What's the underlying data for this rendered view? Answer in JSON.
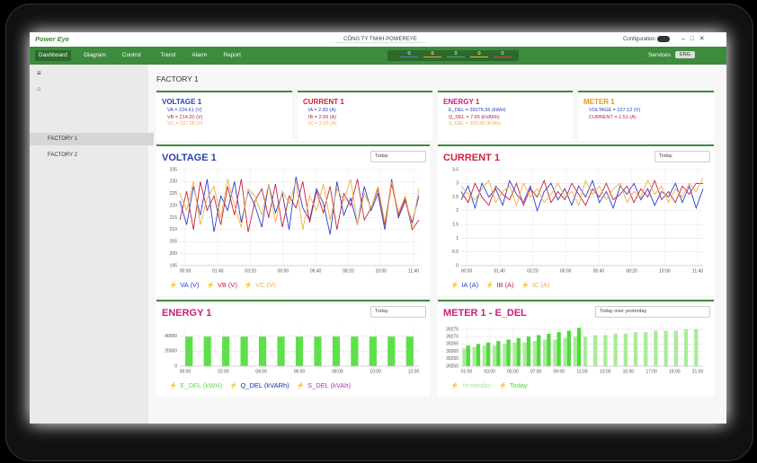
{
  "header": {
    "logo": "Power Eye",
    "company": "CÔNG TY TNHH POWEREYE",
    "configuration": "Configuration"
  },
  "nav": {
    "items": [
      "Dashboard",
      "Diagram",
      "Control",
      "Trend",
      "Alarm",
      "Report"
    ],
    "indicators": [
      "0",
      "0",
      "0",
      "0",
      "0"
    ],
    "indicator_colors": [
      "#4a7fd4",
      "#f0a030",
      "#3cb371",
      "#e8c020",
      "#e04040"
    ],
    "services": "Services",
    "language": "ENG"
  },
  "sidebar": {
    "items": [
      "FACTORY 1",
      "FACTORY 2"
    ]
  },
  "page_title": "FACTORY 1",
  "cards": [
    {
      "title": "VOLTAGE 1",
      "color": "#2a3fb0",
      "lines": [
        "VA = 224.61 (V)",
        "VB = 214.20 (V)",
        "VC = 227.28 (V)"
      ],
      "line_colors": [
        "#2a3fb0",
        "#c8203c",
        "#f0b040"
      ]
    },
    {
      "title": "CURRENT 1",
      "color": "#d0203c",
      "lines": [
        "IA = 2.83 (A)",
        "IB = 2.99 (A)",
        "IC = 3.33 (A)"
      ],
      "line_colors": [
        "#2a3fb0",
        "#c8203c",
        "#f0b040"
      ]
    },
    {
      "title": "ENERGY 1",
      "color": "#c8207a",
      "lines": [
        "E_DEL = 39276.56 (kWH)",
        "Q_DEL = 7.65 (kVARh)",
        "S_DEL = 106.89 (kVAh)"
      ],
      "line_colors": [
        "#2a3fb0",
        "#c8203c",
        "#f0b040"
      ]
    },
    {
      "title": "METER 1",
      "color": "#e09a20",
      "lines": [
        "VOLTAGE = 227.12 (V)",
        "CURRENT = 2.51 (A)"
      ],
      "line_colors": [
        "#2a3fb0",
        "#c8203c"
      ]
    }
  ],
  "charts": [
    {
      "type": "line",
      "title": "VOLTAGE 1",
      "color": "#2a3fb0",
      "range": "Today",
      "ylim": [
        195,
        235
      ],
      "yticks": [
        195,
        200,
        205,
        210,
        215,
        220,
        225,
        230,
        235
      ],
      "x_labels": [
        "00:00",
        "01:40",
        "03:20",
        "05:00",
        "06:40",
        "08:20",
        "10:00",
        "11:40"
      ],
      "series": [
        {
          "name": "VA (V)",
          "color": "#2a3fd0",
          "values": [
            222,
            212,
            228,
            216,
            231,
            209,
            224,
            218,
            230,
            213,
            226,
            220,
            211,
            229,
            217,
            225,
            210,
            232,
            219,
            214,
            227,
            221,
            208,
            230,
            216,
            223,
            212,
            228,
            218,
            225,
            210,
            231,
            215,
            222,
            213,
            224
          ]
        },
        {
          "name": "VB (V)",
          "color": "#c8203c",
          "values": [
            214,
            226,
            210,
            230,
            218,
            224,
            212,
            228,
            216,
            231,
            209,
            222,
            227,
            215,
            229,
            211,
            224,
            219,
            230,
            213,
            226,
            217,
            228,
            210,
            225,
            220,
            231,
            214,
            219,
            227,
            212,
            229,
            216,
            223,
            210,
            214
          ]
        },
        {
          "name": "VC (V)",
          "color": "#f0b040",
          "values": [
            225,
            218,
            230,
            212,
            223,
            228,
            215,
            231,
            220,
            211,
            227,
            224,
            216,
            229,
            213,
            226,
            221,
            230,
            210,
            224,
            218,
            229,
            214,
            227,
            222,
            231,
            212,
            225,
            219,
            228,
            213,
            230,
            217,
            224,
            211,
            227
          ]
        }
      ]
    },
    {
      "type": "line",
      "title": "CURRENT 1",
      "color": "#d0203c",
      "range": "Today",
      "ylim": [
        0,
        3.5
      ],
      "yticks": [
        0,
        0.5,
        1,
        1.5,
        2,
        2.5,
        3,
        3.5
      ],
      "x_labels": [
        "00:00",
        "01:40",
        "03:20",
        "05:00",
        "06:40",
        "08:20",
        "10:00",
        "11:40"
      ],
      "series": [
        {
          "name": "IA (A)",
          "color": "#2a3fd0",
          "values": [
            2.4,
            2.9,
            2.1,
            3.0,
            2.5,
            2.8,
            2.2,
            3.1,
            2.6,
            2.3,
            2.9,
            2.0,
            2.7,
            3.0,
            2.4,
            2.8,
            2.2,
            2.9,
            2.5,
            3.1,
            2.3,
            2.7,
            2.1,
            2.9,
            2.6,
            3.0,
            2.4,
            2.8,
            2.2,
            2.7,
            2.5,
            3.0,
            2.3,
            2.9,
            2.1,
            2.8
          ]
        },
        {
          "name": "IB (A)",
          "color": "#c8203c",
          "values": [
            2.7,
            2.3,
            3.0,
            2.5,
            2.2,
            2.9,
            2.6,
            2.4,
            3.0,
            2.2,
            2.8,
            2.5,
            3.1,
            2.3,
            2.7,
            2.4,
            3.0,
            2.6,
            2.2,
            2.8,
            2.5,
            3.0,
            2.4,
            2.6,
            2.9,
            2.3,
            2.8,
            2.5,
            3.1,
            2.4,
            2.7,
            2.3,
            2.9,
            2.6,
            3.0,
            2.99
          ]
        },
        {
          "name": "IC (A)",
          "color": "#f0b040",
          "values": [
            2.9,
            2.6,
            2.4,
            2.8,
            3.1,
            2.3,
            2.7,
            2.9,
            2.2,
            3.0,
            2.5,
            2.8,
            2.3,
            2.6,
            3.0,
            2.5,
            2.7,
            2.2,
            3.1,
            2.6,
            2.9,
            2.4,
            2.8,
            3.0,
            2.3,
            2.7,
            2.5,
            3.1,
            2.6,
            2.9,
            2.3,
            2.8,
            2.5,
            3.0,
            2.7,
            3.2
          ]
        }
      ]
    },
    {
      "type": "bar",
      "title": "ENERGY 1",
      "color": "#c8207a",
      "range": "Today",
      "ylim": [
        0,
        55000
      ],
      "yticks": [
        0,
        20000,
        40000
      ],
      "x_labels": [
        "00:00",
        "02:00",
        "04:00",
        "06:00",
        "08:00",
        "10:00",
        "12:00"
      ],
      "series": [
        {
          "name": "E_DEL (kWH)",
          "color": "#5ee04a",
          "values": [
            39276,
            39276,
            39276,
            39276,
            39276,
            39276,
            39276,
            39276,
            39276,
            39276,
            39276,
            39276,
            39276
          ]
        },
        {
          "name": "Q_DEL (kVARh)",
          "color": "#1a2fb0"
        },
        {
          "name": "S_DEL (kVAh)",
          "color": "#b030c0"
        }
      ]
    },
    {
      "type": "bar",
      "title": "METER 1 - E_DEL",
      "color": "#c8207a",
      "range": "Today over yesterday",
      "ylim": [
        39250,
        39278
      ],
      "yticks": [
        39250,
        39255,
        39260,
        39265,
        39270,
        39275
      ],
      "x_labels": [
        "01:00",
        "03:00",
        "05:00",
        "07:00",
        "09:00",
        "11:00",
        "13:00",
        "15:00",
        "17:00",
        "19:00",
        "21:00"
      ],
      "series": [
        {
          "name": "Yesterday",
          "color": "#a8ec98",
          "values": [
            39262,
            39263,
            39264,
            39264,
            39265,
            39266,
            39266,
            39267,
            39268,
            39268,
            39269,
            39270,
            39270,
            39271,
            39271,
            39272,
            39272,
            39273,
            39273,
            39274,
            39274,
            39274,
            39275,
            39275
          ]
        },
        {
          "name": "Today",
          "color": "#52d83c",
          "values": [
            39264,
            39265,
            39266,
            39267,
            39268,
            39269,
            39270,
            39271,
            39272,
            39273,
            39274,
            39276
          ]
        }
      ]
    }
  ]
}
